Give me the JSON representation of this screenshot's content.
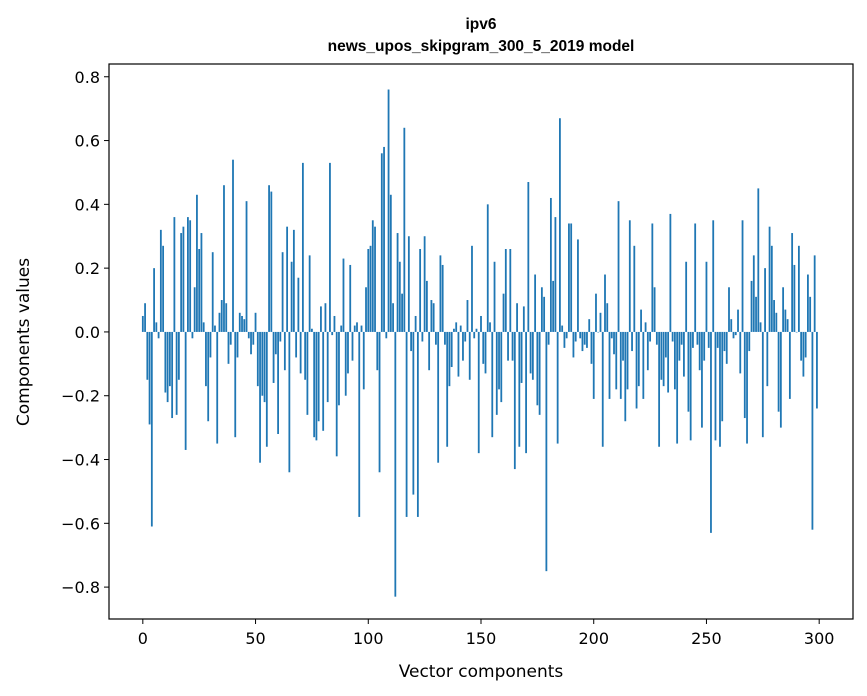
{
  "chart_data": {
    "type": "bar",
    "title": "ipv6",
    "subtitle": "news_upos_skipgram_300_5_2019 model",
    "xlabel": "Vector components",
    "ylabel": "Components values",
    "xlim": [
      -15,
      315
    ],
    "ylim": [
      -0.9,
      0.84
    ],
    "xticks": [
      0,
      50,
      100,
      150,
      200,
      250,
      300
    ],
    "yticks": [
      -0.8,
      -0.6,
      -0.4,
      -0.2,
      0.0,
      0.2,
      0.4,
      0.6,
      0.8
    ],
    "xtick_labels": [
      "0",
      "50",
      "100",
      "150",
      "200",
      "250",
      "300"
    ],
    "ytick_labels": [
      "−0.8",
      "−0.6",
      "−0.4",
      "−0.2",
      "0.0",
      "0.2",
      "0.4",
      "0.6",
      "0.8"
    ],
    "bar_color": "#1f77b4",
    "values": [
      0.05,
      0.09,
      -0.15,
      -0.29,
      -0.61,
      0.2,
      0.03,
      -0.02,
      0.32,
      0.27,
      -0.19,
      -0.22,
      -0.17,
      -0.27,
      0.36,
      -0.26,
      -0.15,
      0.31,
      0.33,
      -0.37,
      0.36,
      0.35,
      -0.02,
      0.14,
      0.43,
      0.26,
      0.31,
      0.03,
      -0.17,
      -0.28,
      -0.08,
      0.25,
      0.02,
      -0.35,
      0.06,
      0.1,
      0.46,
      0.09,
      -0.1,
      -0.04,
      0.54,
      -0.33,
      -0.08,
      0.06,
      0.05,
      0.04,
      0.41,
      -0.02,
      -0.07,
      -0.04,
      0.06,
      -0.17,
      -0.41,
      -0.2,
      -0.22,
      -0.36,
      0.46,
      0.44,
      -0.16,
      -0.07,
      -0.32,
      -0.03,
      0.25,
      -0.12,
      0.33,
      -0.44,
      0.22,
      0.32,
      -0.08,
      0.17,
      -0.13,
      0.53,
      -0.15,
      -0.26,
      0.24,
      0.01,
      -0.33,
      -0.34,
      -0.28,
      0.08,
      -0.31,
      0.09,
      -0.22,
      0.53,
      -0.01,
      0.05,
      -0.39,
      -0.23,
      0.02,
      0.23,
      -0.2,
      -0.13,
      0.21,
      -0.09,
      0.02,
      0.03,
      -0.58,
      0.02,
      -0.18,
      0.14,
      0.26,
      0.27,
      0.35,
      0.33,
      -0.12,
      -0.44,
      0.56,
      0.58,
      -0.02,
      0.76,
      0.43,
      0.09,
      -0.83,
      0.31,
      0.22,
      0.12,
      0.64,
      -0.58,
      0.3,
      -0.06,
      -0.51,
      0.05,
      -0.58,
      0.26,
      -0.03,
      0.3,
      0.16,
      -0.12,
      0.1,
      0.09,
      -0.04,
      -0.41,
      0.24,
      0.21,
      -0.04,
      -0.36,
      -0.17,
      -0.11,
      0.01,
      0.03,
      -0.14,
      0.02,
      -0.09,
      -0.03,
      0.1,
      -0.15,
      0.27,
      -0.02,
      0.01,
      -0.38,
      0.05,
      -0.1,
      -0.13,
      0.4,
      0.03,
      -0.33,
      0.22,
      -0.26,
      -0.18,
      -0.22,
      0.12,
      0.26,
      -0.09,
      0.26,
      -0.09,
      -0.43,
      0.09,
      -0.36,
      -0.16,
      0.08,
      -0.38,
      0.47,
      -0.13,
      -0.15,
      0.18,
      -0.23,
      -0.26,
      0.14,
      0.11,
      -0.75,
      -0.04,
      0.42,
      0.16,
      0.36,
      -0.35,
      0.67,
      0.02,
      -0.05,
      -0.02,
      0.34,
      0.34,
      -0.08,
      -0.03,
      0.29,
      -0.02,
      -0.06,
      -0.04,
      -0.05,
      0.04,
      -0.1,
      -0.21,
      0.12,
      0.0,
      0.06,
      -0.36,
      0.18,
      0.09,
      -0.21,
      -0.02,
      -0.07,
      -0.18,
      0.41,
      -0.21,
      -0.09,
      -0.28,
      -0.18,
      0.35,
      -0.06,
      0.27,
      -0.24,
      -0.17,
      0.07,
      -0.21,
      0.03,
      -0.12,
      -0.03,
      0.34,
      0.14,
      -0.04,
      -0.36,
      -0.15,
      -0.17,
      -0.08,
      -0.19,
      0.37,
      -0.03,
      -0.18,
      -0.35,
      -0.09,
      -0.04,
      -0.14,
      0.22,
      -0.25,
      -0.34,
      -0.05,
      0.34,
      -0.04,
      -0.12,
      -0.3,
      -0.09,
      0.22,
      -0.05,
      -0.63,
      0.35,
      -0.34,
      -0.05,
      -0.36,
      -0.28,
      -0.06,
      -0.1,
      0.14,
      0.04,
      -0.02,
      -0.01,
      0.07,
      -0.13,
      0.35,
      -0.27,
      -0.35,
      -0.06,
      0.16,
      0.24,
      0.11,
      0.45,
      0.03,
      -0.33,
      0.2,
      -0.17,
      0.33,
      0.27,
      0.1,
      0.06,
      -0.25,
      -0.3,
      0.14,
      0.07,
      0.04,
      -0.21,
      0.31,
      0.21,
      0.0,
      0.27,
      -0.09,
      -0.14,
      -0.08,
      0.18,
      0.11,
      -0.62,
      0.24,
      -0.24
    ]
  }
}
